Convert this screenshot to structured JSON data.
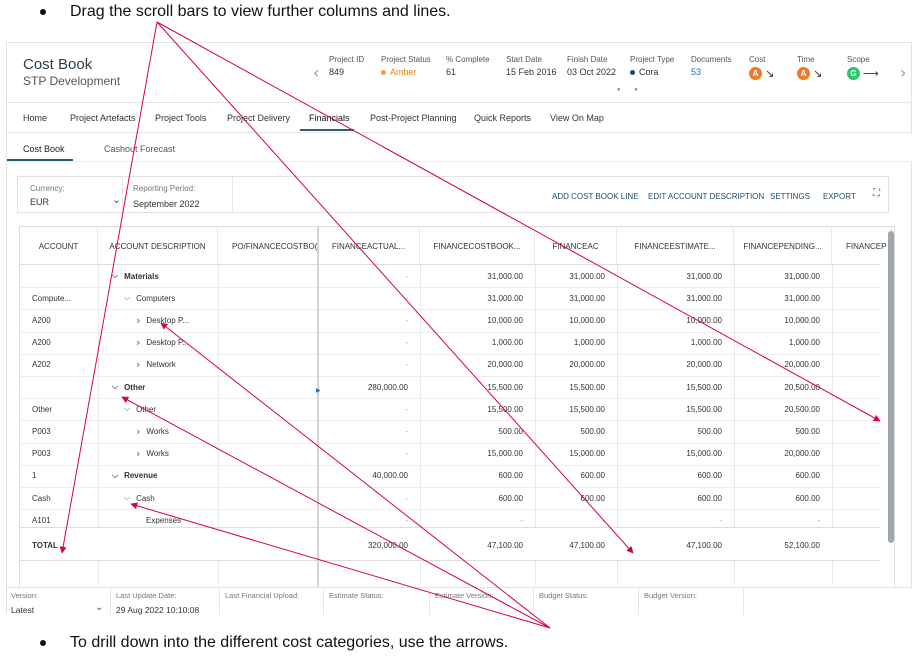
{
  "notes": {
    "top": "Drag the scroll bars to view further columns and lines.",
    "bottom": "To drill down into the different cost categories, use the arrows."
  },
  "header": {
    "title": "Cost Book",
    "subtitle": "STP Development",
    "meta": [
      {
        "label": "Project ID",
        "value": "849"
      },
      {
        "label": "Project Status",
        "value": "Amber",
        "dot_color": "#f0a030"
      },
      {
        "label": "% Complete",
        "value": "61"
      },
      {
        "label": "Start Date",
        "value": "15 Feb 2016"
      },
      {
        "label": "Finish Date",
        "value": "03 Oct 2022"
      },
      {
        "label": "Project Type",
        "value": "Cora",
        "dot_color": "#1c4e6b"
      },
      {
        "label": "Documents",
        "value": "53"
      },
      {
        "label": "Cost",
        "badge": "A",
        "badge_color": "#f07a2a",
        "trend": "down-right-arrow"
      },
      {
        "label": "Time",
        "badge": "A",
        "badge_color": "#f07a2a",
        "trend": "down-right-arrow"
      },
      {
        "label": "Scope",
        "badge": "G",
        "badge_color": "#2ec46a",
        "trend": "right-arrow"
      }
    ]
  },
  "nav": {
    "tabs": [
      "Home",
      "Project Artefacts",
      "Project Tools",
      "Project Delivery",
      "Financials",
      "Post-Project Planning",
      "Quick Reports",
      "View On Map"
    ],
    "active": "Financials"
  },
  "subnav": {
    "tabs": [
      "Cost Book",
      "Cashout Forecast"
    ],
    "active": "Cost Book"
  },
  "toolbar": {
    "currency_label": "Currency:",
    "currency_value": "EUR",
    "period_label": "Reporting Period:",
    "period_value": "September 2022",
    "actions": [
      "ADD COST BOOK LINE",
      "EDIT ACCOUNT DESCRIPTION",
      "SETTINGS",
      "EXPORT"
    ]
  },
  "grid": {
    "columns": [
      "ACCOUNT",
      "ACCOUNT DESCRIPTION",
      "PO/FINANCECOSTBO(",
      "FINANCEACTUAL...",
      "FINANCECOSTBOOK...",
      "FINANCEAC",
      "FINANCEESTIMATE...",
      "FINANCEPENDING...",
      "FINANCEP"
    ],
    "rows": [
      {
        "account": "",
        "desc": "Materials",
        "level": 0,
        "bold": true,
        "caret": "expanded",
        "actual": "-",
        "costbook": "31,000.00",
        "ac": "31,000.00",
        "estimate": "31,000.00",
        "pending": "31,000.00"
      },
      {
        "account": "Compute...",
        "desc": "Computers",
        "level": 1,
        "bold": false,
        "caret": "expanded",
        "actual": "-",
        "costbook": "31,000.00",
        "ac": "31,000.00",
        "estimate": "31,000.00",
        "pending": "31,000.00"
      },
      {
        "account": "A200",
        "desc": "Desktop P...",
        "level": 2,
        "bold": false,
        "caret": "collapsed",
        "actual": "-",
        "costbook": "10,000.00",
        "ac": "10,000.00",
        "estimate": "10,000.00",
        "pending": "10,000.00"
      },
      {
        "account": "A200",
        "desc": "Desktop P...",
        "level": 2,
        "bold": false,
        "caret": "collapsed",
        "actual": "-",
        "costbook": "1,000.00",
        "ac": "1,000.00",
        "estimate": "1,000.00",
        "pending": "1,000.00"
      },
      {
        "account": "A202",
        "desc": "Network",
        "level": 2,
        "bold": false,
        "caret": "collapsed",
        "actual": "-",
        "costbook": "20,000.00",
        "ac": "20,000.00",
        "estimate": "20,000.00",
        "pending": "20,000.00"
      },
      {
        "account": "",
        "desc": "Other",
        "level": 0,
        "bold": true,
        "caret": "expanded",
        "actual": "280,000.00",
        "costbook": "15,500.00",
        "ac": "15,500.00",
        "estimate": "15,500.00",
        "pending": "20,500.00"
      },
      {
        "account": "Other",
        "desc": "Other",
        "level": 1,
        "bold": false,
        "caret": "expanded",
        "actual": "-",
        "costbook": "15,500.00",
        "ac": "15,500.00",
        "estimate": "15,500.00",
        "pending": "20,500.00"
      },
      {
        "account": "P003",
        "desc": "Works",
        "level": 2,
        "bold": false,
        "caret": "collapsed",
        "actual": "-",
        "costbook": "500.00",
        "ac": "500.00",
        "estimate": "500.00",
        "pending": "500.00"
      },
      {
        "account": "P003",
        "desc": "Works",
        "level": 2,
        "bold": false,
        "caret": "collapsed",
        "actual": "-",
        "costbook": "15,000.00",
        "ac": "15,000.00",
        "estimate": "15,000.00",
        "pending": "20,000.00"
      },
      {
        "account": "1",
        "desc": "Revenue",
        "level": 0,
        "bold": true,
        "caret": "expanded",
        "actual": "40,000.00",
        "costbook": "600.00",
        "ac": "600.00",
        "estimate": "600.00",
        "pending": "600.00"
      },
      {
        "account": "Cash",
        "desc": "Cash",
        "level": 1,
        "bold": false,
        "caret": "expanded",
        "actual": "-",
        "costbook": "600.00",
        "ac": "600.00",
        "estimate": "600.00",
        "pending": "600.00"
      },
      {
        "account": "A101",
        "desc": "Expenses",
        "level": 2,
        "bold": false,
        "caret": "none",
        "actual": "-",
        "costbook": "-",
        "ac": "-",
        "estimate": "-",
        "pending": "-"
      }
    ],
    "total": {
      "label": "TOTAL",
      "actual": "320,000.00",
      "costbook": "47,100.00",
      "ac": "47,100.00",
      "estimate": "47,100.00",
      "pending": "52,100.00"
    }
  },
  "footer": [
    {
      "label": "Version:",
      "value": "Latest"
    },
    {
      "label": "Last Update Date:",
      "value": "29 Aug 2022 10:10:08"
    },
    {
      "label": "Last Financial Upload:",
      "value": ""
    },
    {
      "label": "Estimate Status:",
      "value": ""
    },
    {
      "label": "Estimate Version:",
      "value": ""
    },
    {
      "label": "Budget Status:",
      "value": ""
    },
    {
      "label": "Budget Version:",
      "value": ""
    }
  ],
  "annotation_color": "#d6004f"
}
